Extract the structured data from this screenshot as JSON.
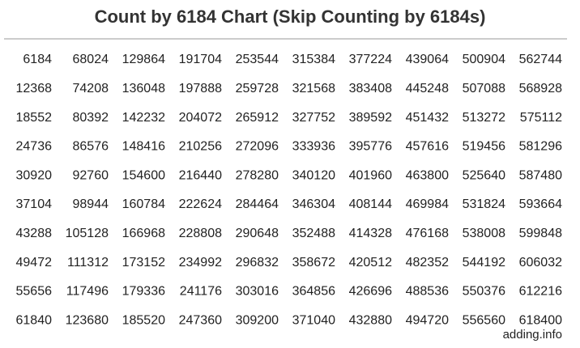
{
  "header": {
    "title": "Count by 6184 Chart (Skip Counting by 6184s)"
  },
  "table": {
    "rows": [
      [
        6184,
        68024,
        129864,
        191704,
        253544,
        315384,
        377224,
        439064,
        500904,
        562744
      ],
      [
        12368,
        74208,
        136048,
        197888,
        259728,
        321568,
        383408,
        445248,
        507088,
        568928
      ],
      [
        18552,
        80392,
        142232,
        204072,
        265912,
        327752,
        389592,
        451432,
        513272,
        575112
      ],
      [
        24736,
        86576,
        148416,
        210256,
        272096,
        333936,
        395776,
        457616,
        519456,
        581296
      ],
      [
        30920,
        92760,
        154600,
        216440,
        278280,
        340120,
        401960,
        463800,
        525640,
        587480
      ],
      [
        37104,
        98944,
        160784,
        222624,
        284464,
        346304,
        408144,
        469984,
        531824,
        593664
      ],
      [
        43288,
        105128,
        166968,
        228808,
        290648,
        352488,
        414328,
        476168,
        538008,
        599848
      ],
      [
        49472,
        111312,
        173152,
        234992,
        296832,
        358672,
        420512,
        482352,
        544192,
        606032
      ],
      [
        55656,
        117496,
        179336,
        241176,
        303016,
        364856,
        426696,
        488536,
        550376,
        612216
      ],
      [
        61840,
        123680,
        185520,
        247360,
        309200,
        371040,
        432880,
        494720,
        556560,
        618400
      ]
    ]
  },
  "footer": {
    "source": "adding.info"
  }
}
